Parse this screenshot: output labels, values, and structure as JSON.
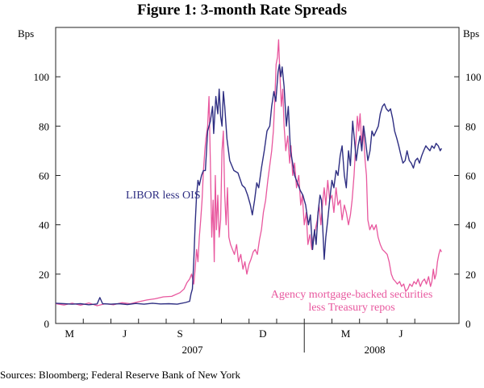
{
  "chart_data": {
    "type": "line",
    "title": "Figure 1: 3-month Rate Spreads",
    "ylabel_left": "Bps",
    "ylabel_right": "Bps",
    "ylim": [
      0,
      120
    ],
    "yticks": [
      0,
      20,
      40,
      60,
      80,
      100
    ],
    "xlim": [
      0,
      14.6
    ],
    "month_ticks": [
      {
        "label": "M",
        "x": 0.5
      },
      {
        "label": "J",
        "x": 2.5
      },
      {
        "label": "S",
        "x": 4.5
      },
      {
        "label": "D",
        "x": 7.5
      },
      {
        "label": "M",
        "x": 10.5
      },
      {
        "label": "J",
        "x": 12.5
      }
    ],
    "year_labels": [
      {
        "label": "2007",
        "x": 4.95
      },
      {
        "label": "2008",
        "x": 11.55
      }
    ],
    "year_divider_x": 9,
    "series": [
      {
        "name": "LIBOR less OIS",
        "label_text": "LIBOR less OIS",
        "color": "#2e2e82",
        "points": [
          [
            0.0,
            8.2
          ],
          [
            0.3,
            8.0
          ],
          [
            0.6,
            7.8
          ],
          [
            0.9,
            8.0
          ],
          [
            1.2,
            7.6
          ],
          [
            1.5,
            7.9
          ],
          [
            1.6,
            10.5
          ],
          [
            1.7,
            8.0
          ],
          [
            2.0,
            7.8
          ],
          [
            2.3,
            8.0
          ],
          [
            2.6,
            7.7
          ],
          [
            2.9,
            8.1
          ],
          [
            3.2,
            7.8
          ],
          [
            3.5,
            8.2
          ],
          [
            3.8,
            7.9
          ],
          [
            4.1,
            8.0
          ],
          [
            4.4,
            7.8
          ],
          [
            4.7,
            8.5
          ],
          [
            4.85,
            9.0
          ],
          [
            4.9,
            12.0
          ],
          [
            4.95,
            14.0
          ],
          [
            5.0,
            25.0
          ],
          [
            5.05,
            40.0
          ],
          [
            5.1,
            52.0
          ],
          [
            5.15,
            58.0
          ],
          [
            5.2,
            56.0
          ],
          [
            5.28,
            60.0
          ],
          [
            5.35,
            62.0
          ],
          [
            5.42,
            62.0
          ],
          [
            5.5,
            78.0
          ],
          [
            5.6,
            82.0
          ],
          [
            5.68,
            88.0
          ],
          [
            5.72,
            77.0
          ],
          [
            5.8,
            92.0
          ],
          [
            5.87,
            85.0
          ],
          [
            5.92,
            95.0
          ],
          [
            5.97,
            84.0
          ],
          [
            6.02,
            80.0
          ],
          [
            6.07,
            94.0
          ],
          [
            6.12,
            88.0
          ],
          [
            6.2,
            75.0
          ],
          [
            6.3,
            66.0
          ],
          [
            6.45,
            62.0
          ],
          [
            6.6,
            61.0
          ],
          [
            6.75,
            56.0
          ],
          [
            6.85,
            55.0
          ],
          [
            6.95,
            52.0
          ],
          [
            7.05,
            48.0
          ],
          [
            7.12,
            44.0
          ],
          [
            7.2,
            50.0
          ],
          [
            7.28,
            57.0
          ],
          [
            7.35,
            55.0
          ],
          [
            7.45,
            63.0
          ],
          [
            7.55,
            70.0
          ],
          [
            7.65,
            78.0
          ],
          [
            7.75,
            80.0
          ],
          [
            7.82,
            88.0
          ],
          [
            7.9,
            94.0
          ],
          [
            7.97,
            90.0
          ],
          [
            8.05,
            102.0
          ],
          [
            8.1,
            105.0
          ],
          [
            8.15,
            100.0
          ],
          [
            8.2,
            104.0
          ],
          [
            8.27,
            96.0
          ],
          [
            8.35,
            80.0
          ],
          [
            8.42,
            88.0
          ],
          [
            8.5,
            70.0
          ],
          [
            8.58,
            65.0
          ],
          [
            8.65,
            60.0
          ],
          [
            8.75,
            57.0
          ],
          [
            8.85,
            54.0
          ],
          [
            8.95,
            52.0
          ],
          [
            9.05,
            48.0
          ],
          [
            9.15,
            40.0
          ],
          [
            9.22,
            44.0
          ],
          [
            9.3,
            30.0
          ],
          [
            9.37,
            38.0
          ],
          [
            9.43,
            32.0
          ],
          [
            9.5,
            45.0
          ],
          [
            9.57,
            52.0
          ],
          [
            9.62,
            50.0
          ],
          [
            9.67,
            38.0
          ],
          [
            9.72,
            26.0
          ],
          [
            9.78,
            35.0
          ],
          [
            9.85,
            42.0
          ],
          [
            9.92,
            50.0
          ],
          [
            10.0,
            58.0
          ],
          [
            10.07,
            55.0
          ],
          [
            10.15,
            62.0
          ],
          [
            10.22,
            60.0
          ],
          [
            10.3,
            68.0
          ],
          [
            10.37,
            72.0
          ],
          [
            10.45,
            60.0
          ],
          [
            10.52,
            55.0
          ],
          [
            10.6,
            70.0
          ],
          [
            10.67,
            64.0
          ],
          [
            10.75,
            82.0
          ],
          [
            10.82,
            74.0
          ],
          [
            10.88,
            66.0
          ],
          [
            10.95,
            72.0
          ],
          [
            11.02,
            76.0
          ],
          [
            11.08,
            70.0
          ],
          [
            11.15,
            80.0
          ],
          [
            11.22,
            74.0
          ],
          [
            11.3,
            66.0
          ],
          [
            11.38,
            70.0
          ],
          [
            11.45,
            78.0
          ],
          [
            11.52,
            76.0
          ],
          [
            11.6,
            78.0
          ],
          [
            11.68,
            80.0
          ],
          [
            11.75,
            85.0
          ],
          [
            11.83,
            88.0
          ],
          [
            11.9,
            89.0
          ],
          [
            11.97,
            87.0
          ],
          [
            12.05,
            86.0
          ],
          [
            12.12,
            87.0
          ],
          [
            12.2,
            83.0
          ],
          [
            12.27,
            78.0
          ],
          [
            12.35,
            75.0
          ],
          [
            12.42,
            72.0
          ],
          [
            12.5,
            68.0
          ],
          [
            12.57,
            65.0
          ],
          [
            12.65,
            66.0
          ],
          [
            12.72,
            70.0
          ],
          [
            12.8,
            66.0
          ],
          [
            12.87,
            65.0
          ],
          [
            12.95,
            63.0
          ],
          [
            13.02,
            66.0
          ],
          [
            13.1,
            67.0
          ],
          [
            13.17,
            65.0
          ],
          [
            13.25,
            68.0
          ],
          [
            13.32,
            70.0
          ],
          [
            13.4,
            72.0
          ],
          [
            13.47,
            71.0
          ],
          [
            13.55,
            70.0
          ],
          [
            13.62,
            72.0
          ],
          [
            13.7,
            71.0
          ],
          [
            13.77,
            73.0
          ],
          [
            13.85,
            72.0
          ],
          [
            13.92,
            70.0
          ],
          [
            13.97,
            71.0
          ]
        ]
      },
      {
        "name": "Agency mortgage-backed securities less Treasury repos",
        "label_text_line1": "Agency mortgage-backed securities",
        "label_text_line2": "less Treasury repos",
        "color": "#e8579e",
        "points": [
          [
            0.0,
            8.0
          ],
          [
            0.3,
            7.5
          ],
          [
            0.6,
            8.2
          ],
          [
            0.9,
            7.4
          ],
          [
            1.2,
            8.3
          ],
          [
            1.5,
            7.2
          ],
          [
            1.8,
            8.0
          ],
          [
            2.1,
            7.6
          ],
          [
            2.4,
            8.4
          ],
          [
            2.7,
            8.0
          ],
          [
            3.0,
            8.8
          ],
          [
            3.3,
            9.5
          ],
          [
            3.6,
            10.0
          ],
          [
            3.9,
            10.8
          ],
          [
            4.2,
            11.0
          ],
          [
            4.5,
            12.5
          ],
          [
            4.65,
            14.0
          ],
          [
            4.75,
            16.5
          ],
          [
            4.85,
            18.0
          ],
          [
            4.92,
            20.0
          ],
          [
            5.0,
            16.0
          ],
          [
            5.05,
            22.0
          ],
          [
            5.1,
            30.0
          ],
          [
            5.15,
            25.0
          ],
          [
            5.2,
            35.0
          ],
          [
            5.25,
            42.0
          ],
          [
            5.3,
            50.0
          ],
          [
            5.35,
            62.0
          ],
          [
            5.4,
            70.0
          ],
          [
            5.44,
            75.0
          ],
          [
            5.5,
            80.0
          ],
          [
            5.55,
            92.0
          ],
          [
            5.6,
            65.0
          ],
          [
            5.65,
            35.0
          ],
          [
            5.7,
            50.0
          ],
          [
            5.74,
            25.0
          ],
          [
            5.78,
            60.0
          ],
          [
            5.82,
            38.0
          ],
          [
            5.87,
            52.0
          ],
          [
            5.92,
            35.0
          ],
          [
            5.97,
            42.0
          ],
          [
            6.02,
            70.0
          ],
          [
            6.07,
            78.0
          ],
          [
            6.12,
            52.0
          ],
          [
            6.17,
            40.0
          ],
          [
            6.22,
            55.0
          ],
          [
            6.27,
            35.0
          ],
          [
            6.33,
            32.0
          ],
          [
            6.4,
            30.0
          ],
          [
            6.47,
            28.0
          ],
          [
            6.55,
            32.0
          ],
          [
            6.62,
            25.0
          ],
          [
            6.7,
            28.0
          ],
          [
            6.78,
            22.0
          ],
          [
            6.85,
            25.0
          ],
          [
            6.92,
            20.0
          ],
          [
            7.0,
            24.0
          ],
          [
            7.07,
            26.0
          ],
          [
            7.15,
            29.0
          ],
          [
            7.22,
            30.0
          ],
          [
            7.3,
            28.0
          ],
          [
            7.38,
            34.0
          ],
          [
            7.45,
            38.0
          ],
          [
            7.52,
            45.0
          ],
          [
            7.6,
            50.0
          ],
          [
            7.68,
            58.0
          ],
          [
            7.75,
            64.0
          ],
          [
            7.82,
            70.0
          ],
          [
            7.88,
            78.0
          ],
          [
            7.93,
            90.0
          ],
          [
            7.98,
            105.0
          ],
          [
            8.03,
            108.0
          ],
          [
            8.07,
            115.0
          ],
          [
            8.12,
            100.0
          ],
          [
            8.17,
            88.0
          ],
          [
            8.22,
            95.0
          ],
          [
            8.27,
            80.0
          ],
          [
            8.33,
            70.0
          ],
          [
            8.4,
            76.0
          ],
          [
            8.47,
            65.0
          ],
          [
            8.52,
            72.0
          ],
          [
            8.58,
            60.0
          ],
          [
            8.65,
            65.0
          ],
          [
            8.72,
            55.0
          ],
          [
            8.8,
            60.0
          ],
          [
            8.87,
            48.0
          ],
          [
            8.93,
            52.0
          ],
          [
            9.0,
            40.0
          ],
          [
            9.07,
            45.0
          ],
          [
            9.13,
            32.0
          ],
          [
            9.2,
            36.0
          ],
          [
            9.27,
            30.0
          ],
          [
            9.33,
            35.0
          ],
          [
            9.4,
            38.0
          ],
          [
            9.47,
            42.0
          ],
          [
            9.53,
            48.0
          ],
          [
            9.6,
            40.0
          ],
          [
            9.67,
            50.0
          ],
          [
            9.72,
            55.0
          ],
          [
            9.78,
            48.0
          ],
          [
            9.85,
            58.0
          ],
          [
            9.92,
            50.0
          ],
          [
            10.0,
            52.0
          ],
          [
            10.07,
            45.0
          ],
          [
            10.15,
            55.0
          ],
          [
            10.22,
            48.0
          ],
          [
            10.3,
            50.0
          ],
          [
            10.37,
            42.0
          ],
          [
            10.45,
            48.0
          ],
          [
            10.52,
            45.0
          ],
          [
            10.6,
            40.0
          ],
          [
            10.67,
            44.0
          ],
          [
            10.73,
            50.0
          ],
          [
            10.8,
            60.0
          ],
          [
            10.86,
            72.0
          ],
          [
            10.92,
            84.0
          ],
          [
            10.97,
            78.0
          ],
          [
            11.02,
            85.0
          ],
          [
            11.08,
            72.0
          ],
          [
            11.13,
            80.0
          ],
          [
            11.2,
            66.0
          ],
          [
            11.25,
            60.0
          ],
          [
            11.3,
            42.0
          ],
          [
            11.37,
            38.0
          ],
          [
            11.45,
            40.0
          ],
          [
            11.52,
            38.0
          ],
          [
            11.6,
            40.0
          ],
          [
            11.67,
            35.0
          ],
          [
            11.75,
            32.0
          ],
          [
            11.83,
            30.0
          ],
          [
            11.92,
            29.0
          ],
          [
            12.0,
            28.0
          ],
          [
            12.07,
            25.0
          ],
          [
            12.15,
            20.0
          ],
          [
            12.22,
            18.0
          ],
          [
            12.3,
            17.0
          ],
          [
            12.37,
            16.0
          ],
          [
            12.45,
            17.0
          ],
          [
            12.52,
            15.0
          ],
          [
            12.6,
            16.0
          ],
          [
            12.67,
            13.0
          ],
          [
            12.75,
            14.0
          ],
          [
            12.82,
            16.0
          ],
          [
            12.9,
            15.0
          ],
          [
            12.97,
            17.0
          ],
          [
            13.05,
            16.0
          ],
          [
            13.12,
            18.0
          ],
          [
            13.2,
            15.0
          ],
          [
            13.27,
            17.0
          ],
          [
            13.35,
            18.0
          ],
          [
            13.42,
            16.0
          ],
          [
            13.5,
            19.0
          ],
          [
            13.57,
            15.0
          ],
          [
            13.62,
            17.0
          ],
          [
            13.67,
            22.0
          ],
          [
            13.72,
            18.0
          ],
          [
            13.77,
            20.0
          ],
          [
            13.82,
            25.0
          ],
          [
            13.87,
            28.0
          ],
          [
            13.92,
            30.0
          ],
          [
            13.97,
            29.0
          ]
        ]
      }
    ],
    "sources": "Sources:   Bloomberg; Federal Reserve Bank of New York"
  }
}
